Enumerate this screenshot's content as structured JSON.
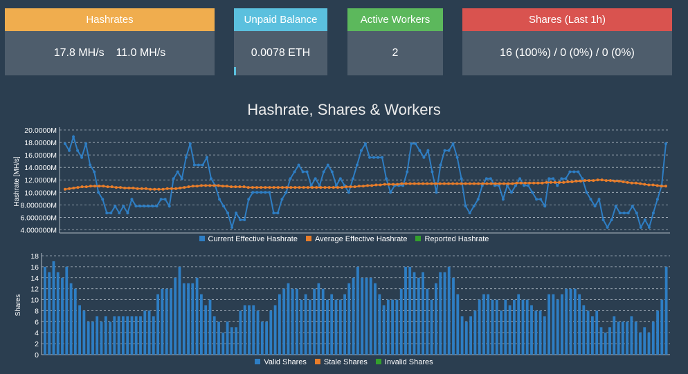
{
  "cards": {
    "hashrates": {
      "title": "Hashrates",
      "current": "17.8 MH/s",
      "average": "11.0 MH/s"
    },
    "unpaid": {
      "title": "Unpaid Balance",
      "value": "0.0078 ETH",
      "progress": 0.02
    },
    "workers": {
      "title": "Active Workers",
      "value": "2"
    },
    "shares": {
      "title": "Shares (Last 1h)",
      "value": "16 (100%) / 0 (0%) / 0 (0%)"
    }
  },
  "charts_title": "Hashrate, Shares & Workers",
  "colors": {
    "blue": "#2e7ec4",
    "orange": "#e87d2a",
    "green": "#33a02c",
    "grid": "#b0bac4",
    "text": "#ffffff",
    "card_orange": "#f0ad4e",
    "card_cyan": "#5bc0de",
    "card_green": "#5cb85c",
    "card_red": "#d9534f"
  },
  "chart_data": [
    {
      "type": "line",
      "ylabel": "Hashrate [MH/s]",
      "yticks": [
        "20.0000M",
        "18.0000M",
        "16.0000M",
        "14.0000M",
        "12.0000M",
        "10.0000M",
        "8.000000M",
        "6.000000M",
        "4.000000M"
      ],
      "ylim": [
        3.5,
        20
      ],
      "grid": true,
      "legend_placement": "bottom",
      "series": [
        {
          "name": "Current Effective Hashrate",
          "color": "#2e7ec4",
          "values": [
            17.8,
            16.7,
            18.9,
            16.7,
            15.6,
            17.8,
            14.4,
            13.3,
            10,
            8.9,
            6.7,
            6.7,
            7.8,
            6.7,
            7.8,
            6.7,
            8.9,
            7.8,
            7.8,
            7.8,
            7.8,
            7.8,
            7.8,
            8.9,
            8.9,
            7.8,
            12.2,
            13.3,
            12.2,
            15.6,
            17.8,
            14.4,
            14.4,
            14.4,
            15.6,
            12.2,
            11.1,
            8.9,
            7.8,
            6.7,
            4.4,
            6.7,
            5.6,
            5.6,
            8.9,
            10,
            10,
            10,
            10,
            10,
            6.7,
            6.7,
            8.9,
            10,
            12.2,
            13.3,
            14.4,
            13.3,
            13.3,
            11.1,
            12.2,
            11.1,
            13.3,
            14.4,
            13.3,
            11.1,
            12.2,
            11.1,
            10,
            12.2,
            14.4,
            16.7,
            17.8,
            15.6,
            15.6,
            15.6,
            15.6,
            12.2,
            10,
            11.1,
            11.1,
            11.1,
            13.3,
            17.8,
            17.8,
            16.7,
            15.6,
            16.7,
            13.3,
            10,
            14.4,
            16.7,
            16.7,
            17.8,
            15.6,
            12.2,
            7.8,
            6.7,
            7.8,
            8.9,
            11.1,
            12.2,
            12.2,
            11.1,
            11.1,
            8.9,
            11.1,
            10,
            11.1,
            12.2,
            11.1,
            11.1,
            10,
            8.9,
            8.9,
            7.8,
            12.2,
            12.2,
            11.1,
            12.2,
            12.2,
            13.3,
            13.3,
            13.3,
            12.2,
            10,
            8.9,
            7.8,
            8.9,
            5.6,
            4.4,
            5.6,
            7.8,
            6.7,
            6.7,
            6.7,
            7.8,
            6.7,
            4.4,
            5.6,
            4.4,
            6.7,
            8.9,
            11.1,
            17.8
          ]
        },
        {
          "name": "Average Effective Hashrate",
          "color": "#e87d2a",
          "values": [
            10.5,
            10.6,
            10.7,
            10.8,
            10.9,
            10.9,
            11,
            11,
            11,
            11,
            10.9,
            10.9,
            10.8,
            10.8,
            10.7,
            10.7,
            10.7,
            10.6,
            10.6,
            10.6,
            10.5,
            10.5,
            10.5,
            10.5,
            10.6,
            10.6,
            10.6,
            10.7,
            10.8,
            10.9,
            11,
            11,
            11.1,
            11.1,
            11.1,
            11.1,
            11.1,
            11,
            11,
            10.9,
            10.9,
            10.9,
            10.9,
            10.8,
            10.8,
            10.8,
            10.8,
            10.8,
            10.8,
            10.8,
            10.8,
            10.8,
            10.8,
            10.8,
            10.8,
            10.8,
            10.8,
            10.8,
            10.8,
            10.8,
            10.8,
            10.8,
            10.8,
            10.8,
            10.8,
            10.8,
            10.9,
            10.9,
            10.9,
            11,
            11,
            11.1,
            11.1,
            11.2,
            11.2,
            11.3,
            11.3,
            11.3,
            11.3,
            11.4,
            11.4,
            11.4,
            11.4,
            11.4,
            11.4,
            11.4,
            11.4,
            11.4,
            11.4,
            11.4,
            11.4,
            11.4,
            11.4,
            11.4,
            11.4,
            11.4,
            11.4,
            11.4,
            11.4,
            11.4,
            11.4,
            11.4,
            11.4,
            11.4,
            11.4,
            11.4,
            11.5,
            11.5,
            11.5,
            11.5,
            11.5,
            11.5,
            11.5,
            11.6,
            11.6,
            11.6,
            11.6,
            11.6,
            11.7,
            11.7,
            11.8,
            11.8,
            11.9,
            11.9,
            11.9,
            12,
            12,
            11.9,
            11.9,
            11.8,
            11.8,
            11.7,
            11.6,
            11.5,
            11.5,
            11.4,
            11.3,
            11.2,
            11.2,
            11.1,
            11,
            11
          ]
        },
        {
          "name": "Reported Hashrate",
          "color": "#33a02c",
          "values": []
        }
      ]
    },
    {
      "type": "bar",
      "ylabel": "Shares",
      "yticks": [
        "18",
        "16",
        "14",
        "12",
        "10",
        "8",
        "6",
        "4",
        "2",
        "0"
      ],
      "ylim": [
        0,
        18
      ],
      "grid": true,
      "legend_placement": "bottom",
      "series": [
        {
          "name": "Valid Shares",
          "color": "#2e7ec4",
          "values": [
            16,
            15,
            17,
            15,
            14,
            16,
            13,
            12,
            9,
            8,
            6,
            6,
            7,
            6,
            7,
            6,
            7,
            7,
            7,
            7,
            7,
            7,
            7,
            8,
            8,
            7,
            11,
            12,
            12,
            12,
            14,
            16,
            13,
            13,
            13,
            14,
            11,
            9,
            10,
            7,
            6,
            4,
            6,
            5,
            5,
            8,
            9,
            9,
            9,
            8,
            6,
            6,
            8,
            9,
            11,
            12,
            13,
            12,
            12,
            10,
            11,
            10,
            12,
            13,
            12,
            10,
            11,
            10,
            10,
            11,
            13,
            14,
            16,
            14,
            14,
            14,
            13,
            11,
            9,
            10,
            10,
            10,
            12,
            16,
            16,
            15,
            14,
            15,
            12,
            10,
            13,
            15,
            15,
            16,
            14,
            11,
            7,
            6,
            7,
            8,
            10,
            11,
            11,
            10,
            10,
            8,
            10,
            9,
            10,
            11,
            10,
            10,
            9,
            8,
            8,
            7,
            11,
            11,
            10,
            11,
            12,
            12,
            12,
            11,
            9,
            8,
            7,
            8,
            5,
            4,
            5,
            7,
            6,
            6,
            6,
            7,
            6,
            4,
            5,
            4,
            6,
            8,
            10,
            16
          ]
        },
        {
          "name": "Stale Shares",
          "color": "#e87d2a",
          "values": []
        },
        {
          "name": "Invalid Shares",
          "color": "#33a02c",
          "values": []
        }
      ]
    }
  ]
}
